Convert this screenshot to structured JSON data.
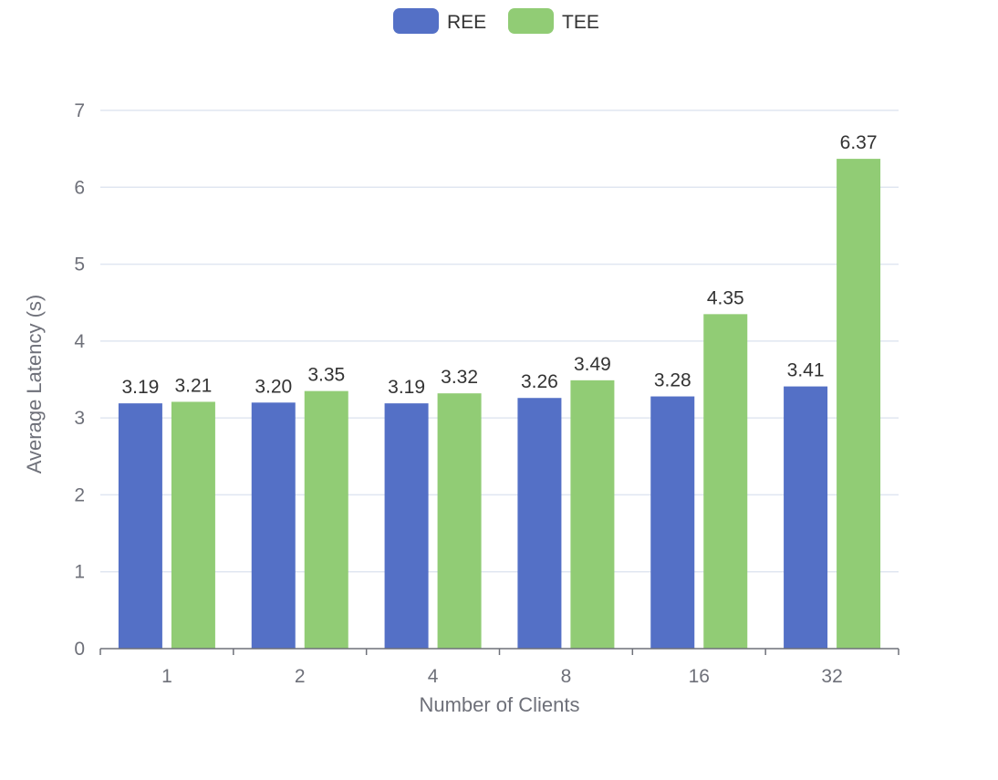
{
  "chart_data": {
    "type": "bar",
    "title": "",
    "xlabel": "Number of Clients",
    "ylabel": "Average Latency (s)",
    "categories": [
      "1",
      "2",
      "4",
      "8",
      "16",
      "32"
    ],
    "ylim": [
      0,
      7
    ],
    "yticks": [
      0,
      1,
      2,
      3,
      4,
      5,
      6,
      7
    ],
    "grid": true,
    "legend_position": "top-center",
    "series": [
      {
        "name": "REE",
        "color": "#5470c6",
        "values": [
          3.19,
          3.2,
          3.19,
          3.26,
          3.28,
          3.41
        ],
        "labels": [
          "3.19",
          "3.20",
          "3.19",
          "3.26",
          "3.28",
          "3.41"
        ]
      },
      {
        "name": "TEE",
        "color": "#91cc75",
        "values": [
          3.21,
          3.35,
          3.32,
          3.49,
          4.35,
          6.37
        ],
        "labels": [
          "3.21",
          "3.35",
          "3.32",
          "3.49",
          "4.35",
          "6.37"
        ]
      }
    ]
  }
}
